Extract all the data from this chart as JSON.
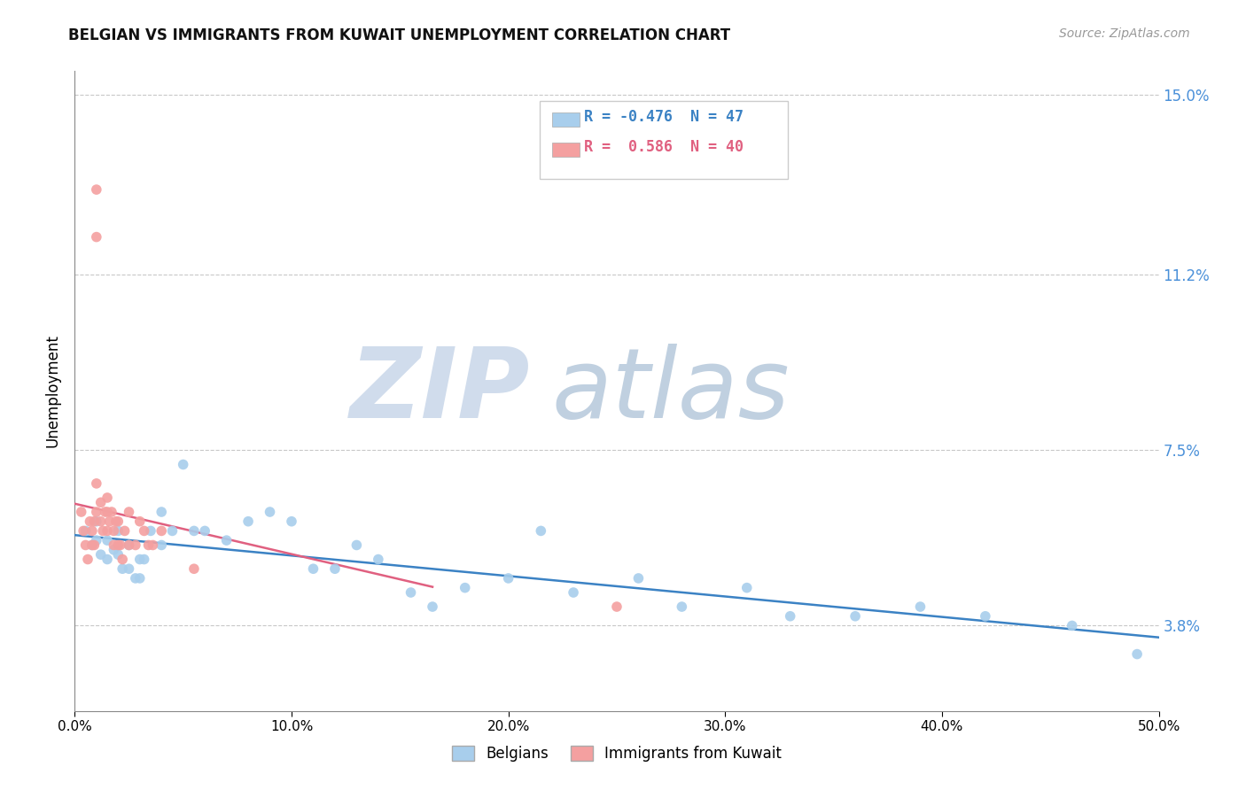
{
  "title": "BELGIAN VS IMMIGRANTS FROM KUWAIT UNEMPLOYMENT CORRELATION CHART",
  "source": "Source: ZipAtlas.com",
  "ylabel": "Unemployment",
  "xlim": [
    0,
    0.5
  ],
  "ylim": [
    0.02,
    0.155
  ],
  "xticks": [
    0.0,
    0.1,
    0.2,
    0.3,
    0.4,
    0.5
  ],
  "xticklabels": [
    "0.0%",
    "10.0%",
    "20.0%",
    "30.0%",
    "40.0%",
    "50.0%"
  ],
  "yticks_right": [
    0.038,
    0.075,
    0.112,
    0.15
  ],
  "yticklabels_right": [
    "3.8%",
    "7.5%",
    "11.2%",
    "15.0%"
  ],
  "legend_r1": "-0.476",
  "legend_n1": "47",
  "legend_r2": "0.586",
  "legend_n2": "40",
  "color_belgian": "#A8CEEC",
  "color_kuwait": "#F4A0A0",
  "color_trendline_belgian": "#3B82C4",
  "color_trendline_kuwait": "#E06080",
  "color_grid": "#C8C8C8",
  "color_axis_right": "#4A90D9",
  "belgians_x": [
    0.005,
    0.008,
    0.01,
    0.01,
    0.012,
    0.015,
    0.015,
    0.018,
    0.02,
    0.02,
    0.022,
    0.025,
    0.025,
    0.028,
    0.03,
    0.03,
    0.032,
    0.035,
    0.04,
    0.04,
    0.045,
    0.05,
    0.055,
    0.06,
    0.07,
    0.08,
    0.09,
    0.1,
    0.11,
    0.12,
    0.13,
    0.14,
    0.155,
    0.165,
    0.18,
    0.2,
    0.215,
    0.23,
    0.26,
    0.28,
    0.31,
    0.33,
    0.36,
    0.39,
    0.42,
    0.46,
    0.49
  ],
  "belgians_y": [
    0.058,
    0.055,
    0.06,
    0.056,
    0.053,
    0.056,
    0.052,
    0.054,
    0.058,
    0.053,
    0.05,
    0.055,
    0.05,
    0.048,
    0.052,
    0.048,
    0.052,
    0.058,
    0.062,
    0.055,
    0.058,
    0.072,
    0.058,
    0.058,
    0.056,
    0.06,
    0.062,
    0.06,
    0.05,
    0.05,
    0.055,
    0.052,
    0.045,
    0.042,
    0.046,
    0.048,
    0.058,
    0.045,
    0.048,
    0.042,
    0.046,
    0.04,
    0.04,
    0.042,
    0.04,
    0.038,
    0.032
  ],
  "kuwait_x": [
    0.003,
    0.004,
    0.005,
    0.006,
    0.007,
    0.008,
    0.008,
    0.009,
    0.009,
    0.01,
    0.01,
    0.01,
    0.01,
    0.012,
    0.012,
    0.013,
    0.014,
    0.015,
    0.015,
    0.015,
    0.016,
    0.017,
    0.018,
    0.018,
    0.019,
    0.02,
    0.02,
    0.021,
    0.022,
    0.023,
    0.025,
    0.025,
    0.028,
    0.03,
    0.032,
    0.034,
    0.036,
    0.04,
    0.055,
    0.25
  ],
  "kuwait_y": [
    0.062,
    0.058,
    0.055,
    0.052,
    0.06,
    0.058,
    0.055,
    0.06,
    0.055,
    0.13,
    0.12,
    0.068,
    0.062,
    0.064,
    0.06,
    0.058,
    0.062,
    0.065,
    0.062,
    0.058,
    0.06,
    0.062,
    0.058,
    0.055,
    0.06,
    0.06,
    0.055,
    0.055,
    0.052,
    0.058,
    0.062,
    0.055,
    0.055,
    0.06,
    0.058,
    0.055,
    0.055,
    0.058,
    0.05,
    0.042
  ],
  "trendline_belgian_x_start": 0.0,
  "trendline_belgian_x_end": 0.5,
  "trendline_kuwait_x_start": 0.0,
  "trendline_kuwait_x_end": 0.165
}
